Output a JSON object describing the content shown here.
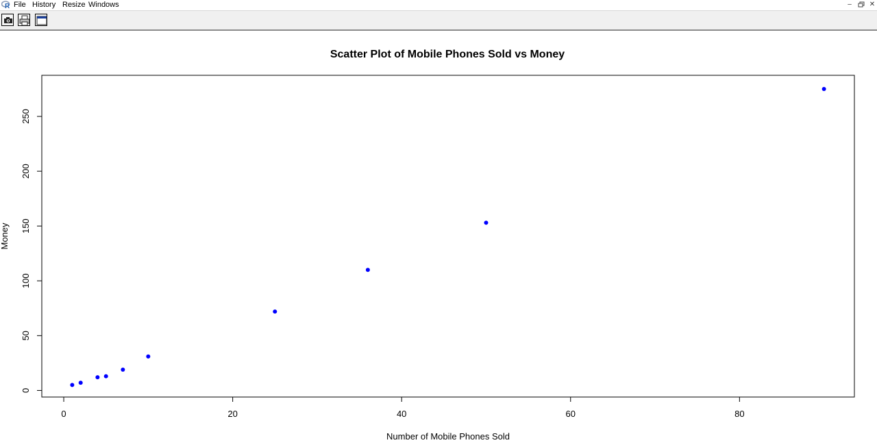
{
  "menubar": {
    "items": [
      "File",
      "History",
      "Resize",
      "Windows"
    ],
    "logo_icon": "r-logo-icon",
    "window_controls": [
      "minimize-icon",
      "restore-icon",
      "close-icon"
    ]
  },
  "toolbar": {
    "buttons": [
      "camera-icon",
      "printer-icon",
      "window-icon"
    ]
  },
  "chart_data": {
    "type": "scatter",
    "title": "Scatter Plot of Mobile Phones Sold vs Money",
    "xlabel": "Number of Mobile Phones Sold",
    "ylabel": "Money",
    "xlim": [
      -2.6,
      93.6
    ],
    "ylim": [
      -6,
      287.5
    ],
    "xticks": [
      0,
      20,
      40,
      60,
      80
    ],
    "yticks": [
      0,
      50,
      100,
      150,
      200,
      250
    ],
    "grid": false,
    "point_color": "#0000ff",
    "series": [
      {
        "points": [
          {
            "x": 1,
            "y": 5
          },
          {
            "x": 2,
            "y": 7
          },
          {
            "x": 4,
            "y": 12
          },
          {
            "x": 5,
            "y": 13
          },
          {
            "x": 7,
            "y": 19
          },
          {
            "x": 10,
            "y": 31
          },
          {
            "x": 25,
            "y": 72
          },
          {
            "x": 36,
            "y": 110
          },
          {
            "x": 50,
            "y": 153
          },
          {
            "x": 90,
            "y": 275
          }
        ]
      }
    ]
  }
}
